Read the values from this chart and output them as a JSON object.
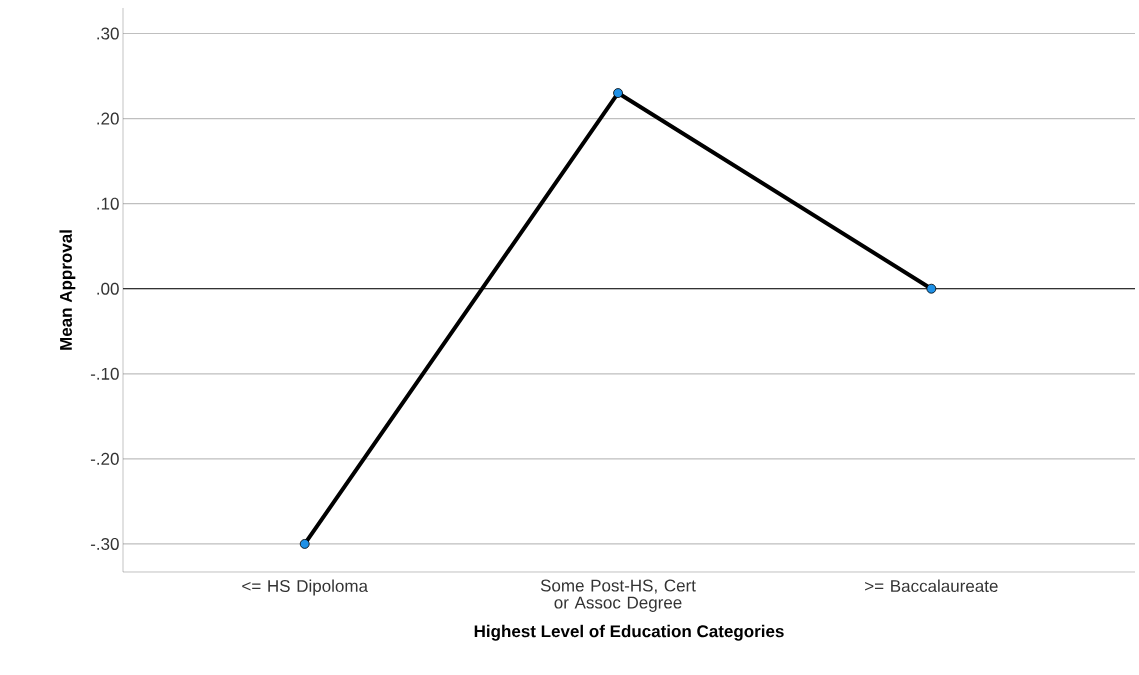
{
  "chart_data": {
    "type": "line",
    "xlabel": "Highest Level of  Education Categories",
    "ylabel": "Mean Approval",
    "categories": [
      "<= HS Dipoloma",
      "Some Post-HS, Cert or Assoc Degree",
      ">= Baccalaureate"
    ],
    "series": [
      {
        "color": "#000000",
        "values": [
          -0.3,
          0.23,
          0.0
        ]
      }
    ],
    "ylim": [
      -0.333,
      0.33
    ],
    "yticks": [
      {
        "value": -0.3,
        "label": "-.30"
      },
      {
        "value": -0.2,
        "label": "-.20"
      },
      {
        "value": -0.1,
        "label": "-.10"
      },
      {
        "value": 0,
        "label": ".00"
      },
      {
        "value": 0.1,
        "label": ".10"
      },
      {
        "value": 0.2,
        "label": ".20"
      },
      {
        "value": 0.3,
        "label": ".30"
      }
    ],
    "ref_lines": [
      {
        "axis": "y",
        "value": 0,
        "color": "#333333"
      }
    ],
    "grid": "y",
    "marker": "circle",
    "line_style": "solid"
  }
}
